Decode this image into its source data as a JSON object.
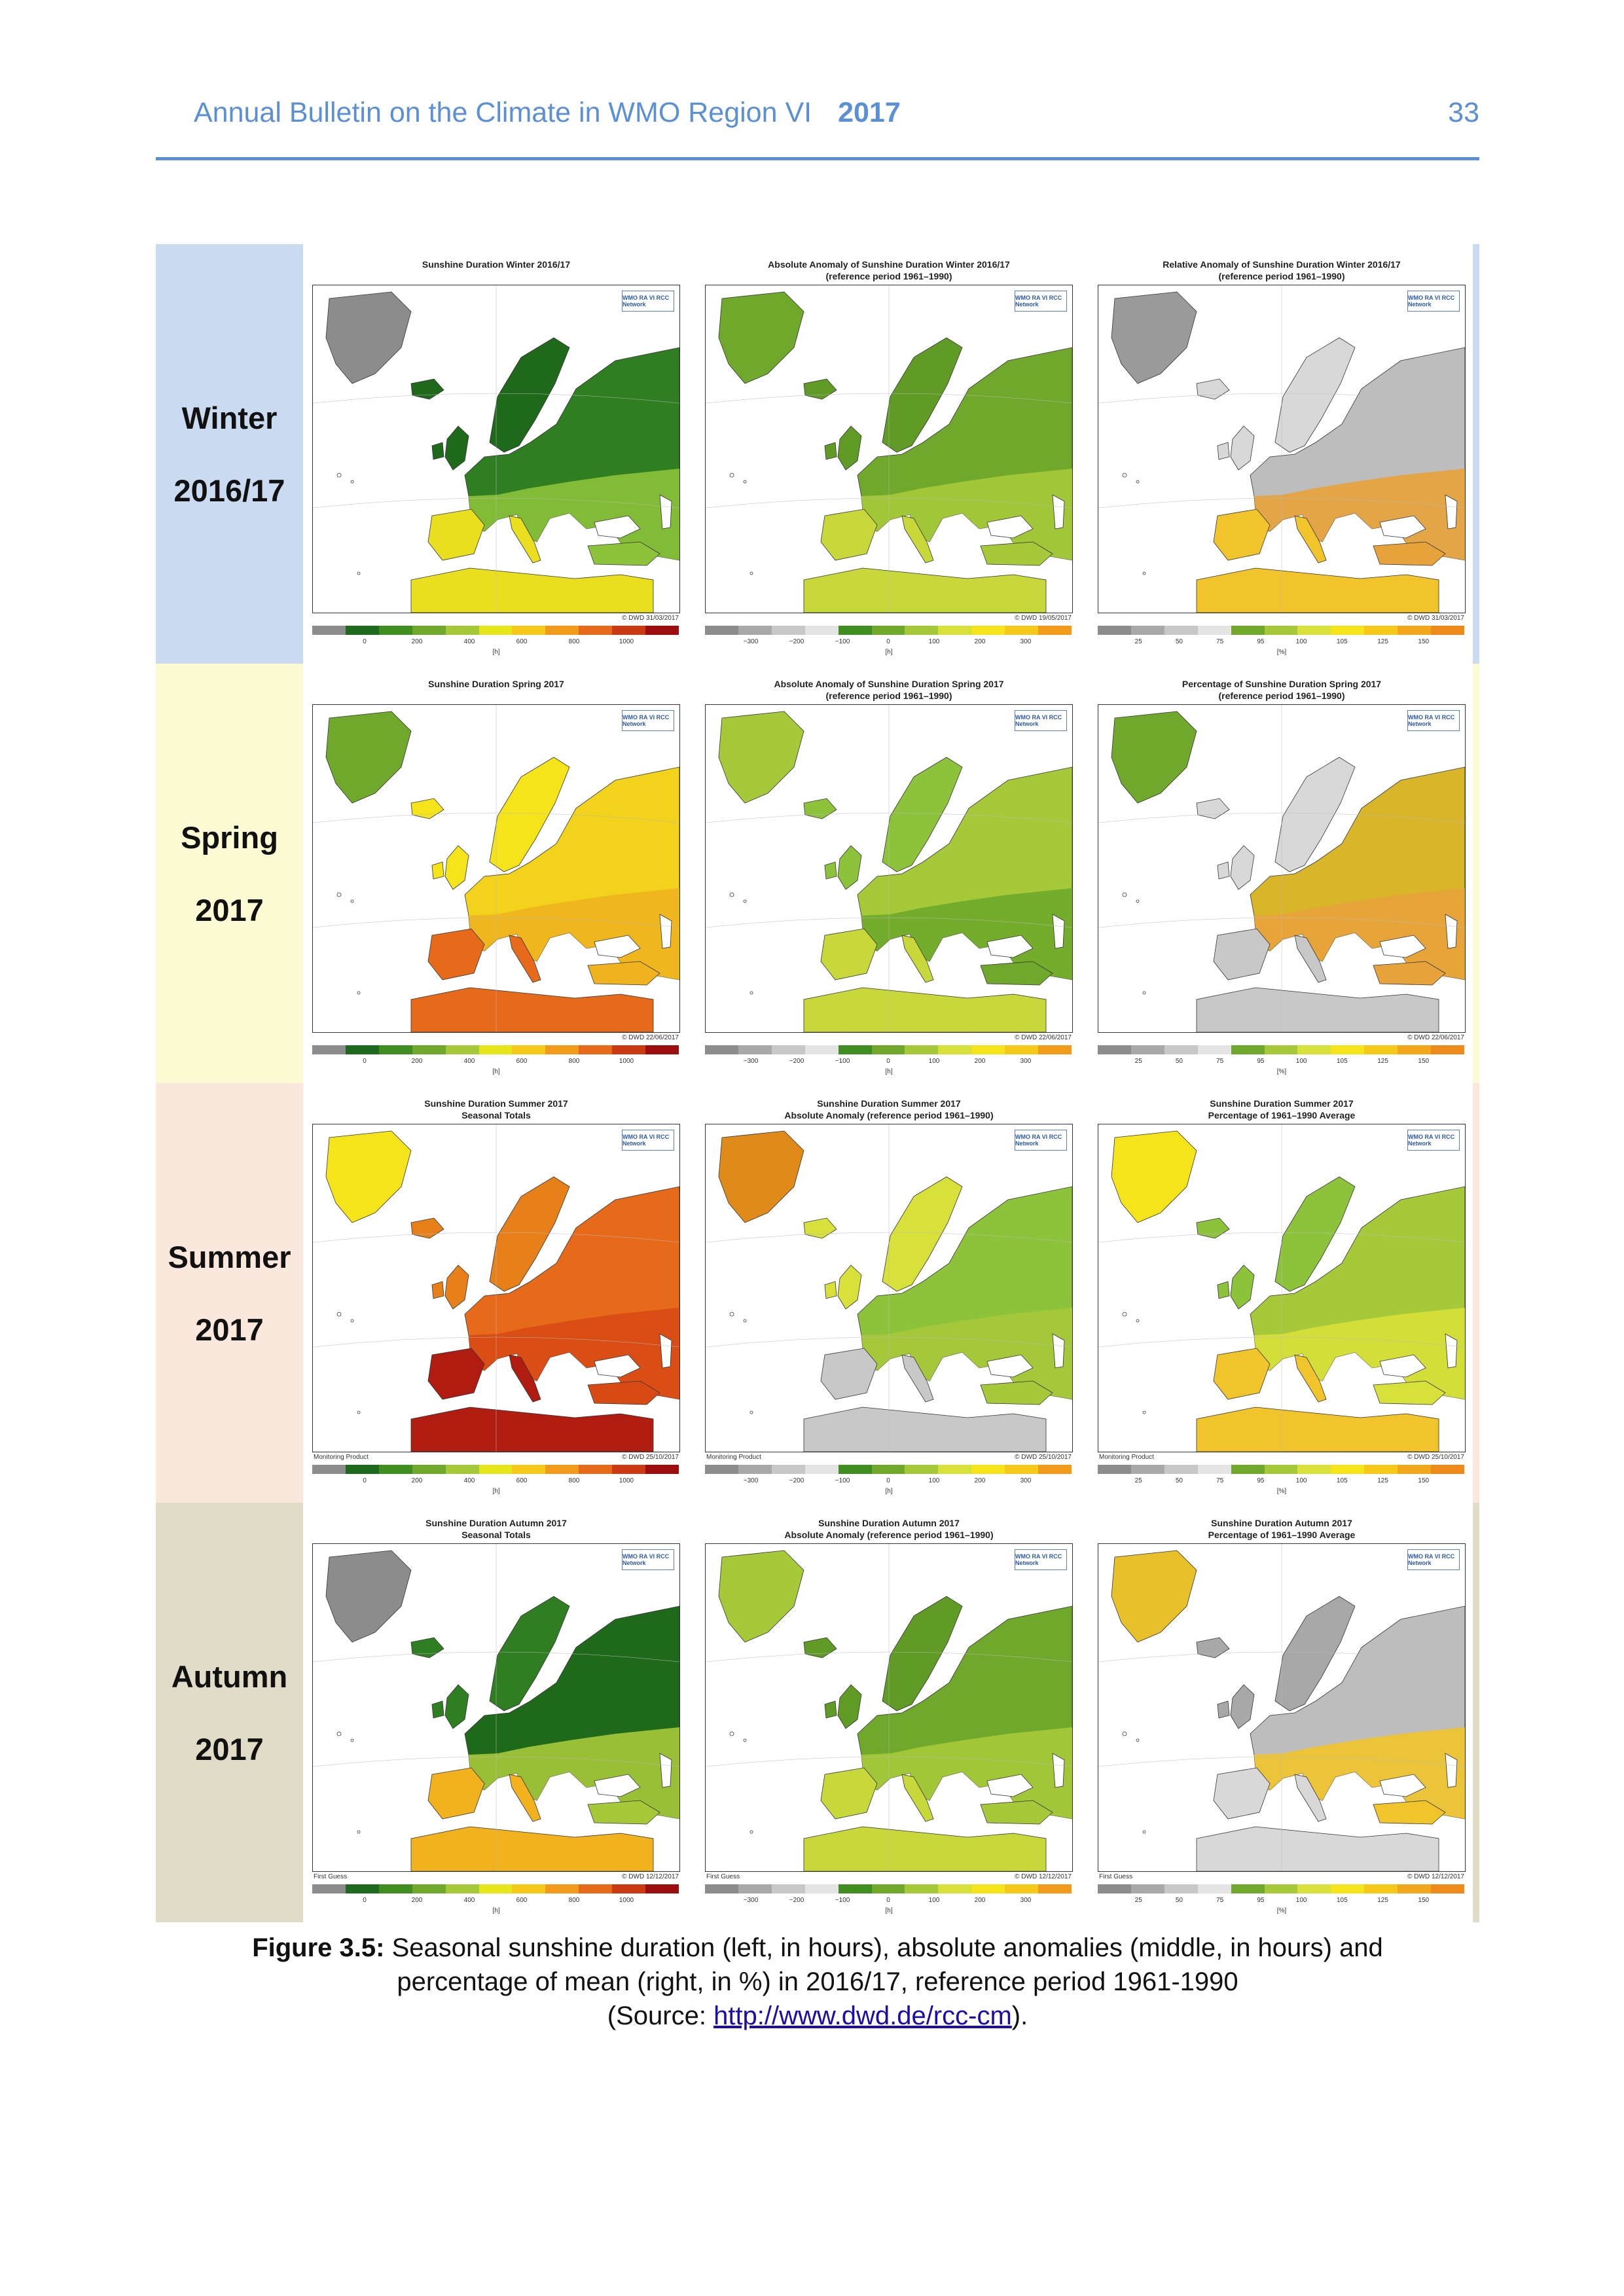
{
  "header": {
    "title": "Annual Bulletin on the Climate in WMO Region VI",
    "year": "2017",
    "page": "33"
  },
  "colors": {
    "header": "#5b8fd6",
    "winter": "#c9daf1",
    "spring": "#fdfbd3",
    "summer": "#fbe8dc",
    "autumn": "#e0dcc8",
    "duration_scale": [
      "#8c8c8c",
      "#1e6a1e",
      "#3f8e1f",
      "#6fa82a",
      "#a6c93a",
      "#e6e61a",
      "#f5c81a",
      "#f29a1a",
      "#e66a1a",
      "#cc3a14",
      "#9c0d0d"
    ],
    "anomaly_scale": [
      "#8c8c8c",
      "#a8a8a8",
      "#c8c8c8",
      "#e4e4e4",
      "#3f8e1f",
      "#6fa82a",
      "#a6c93a",
      "#d8e03a",
      "#f5e41a",
      "#f5c81a",
      "#f29a1a"
    ],
    "percent_scale": [
      "#8c8c8c",
      "#a8a8a8",
      "#c8c8c8",
      "#e4e4e4",
      "#6fa82a",
      "#a6c93a",
      "#d8e03a",
      "#f5e41a",
      "#f5c81a",
      "#f2a81a",
      "#ee8a1a"
    ]
  },
  "scales": {
    "duration": {
      "ticks": [
        "0",
        "200",
        "400",
        "600",
        "800",
        "1000"
      ],
      "unit": "[h]"
    },
    "anomaly": {
      "ticks": [
        "−300",
        "−200",
        "−100",
        "0",
        "100",
        "200",
        "300"
      ],
      "unit": "[h]"
    },
    "percent": {
      "ticks": [
        "25",
        "50",
        "75",
        "95",
        "100",
        "105",
        "125",
        "150"
      ],
      "unit": "[%]"
    }
  },
  "wmo_label": "WMO RA VI RCC Network",
  "seasons": [
    {
      "label_line1": "Winter",
      "label_line2": "2016/17",
      "titles": [
        "Sunshine Duration Winter 2016/17",
        "Absolute Anomaly of Sunshine Duration Winter 2016/17\n(reference period 1961–1990)",
        "Relative Anomaly of Sunshine Duration Winter 2016/17\n(reference period 1961–1990)"
      ],
      "products": [
        "",
        "",
        ""
      ],
      "credits": [
        "© DWD 31/03/2017",
        "© DWD 19/05/2017",
        "© DWD 31/03/2017"
      ]
    },
    {
      "label_line1": "Spring",
      "label_line2": "2017",
      "titles": [
        "Sunshine Duration Spring 2017",
        "Absolute Anomaly of Sunshine Duration Spring 2017\n(reference period 1961–1990)",
        "Percentage of Sunshine Duration Spring 2017\n(reference period 1961–1990)"
      ],
      "products": [
        "",
        "",
        ""
      ],
      "credits": [
        "© DWD 22/06/2017",
        "© DWD 22/06/2017",
        "© DWD 22/06/2017"
      ]
    },
    {
      "label_line1": "Summer",
      "label_line2": "2017",
      "titles": [
        "Sunshine Duration Summer 2017\nSeasonal Totals",
        "Sunshine Duration Summer 2017\nAbsolute Anomaly (reference period 1961–1990)",
        "Sunshine Duration Summer 2017\nPercentage of 1961–1990 Average"
      ],
      "products": [
        "Monitoring Product",
        "Monitoring Product",
        "Monitoring Product"
      ],
      "credits": [
        "© DWD 25/10/2017",
        "© DWD 25/10/2017",
        "© DWD 25/10/2017"
      ]
    },
    {
      "label_line1": "Autumn",
      "label_line2": "2017",
      "titles": [
        "Sunshine Duration Autumn 2017\nSeasonal Totals",
        "Sunshine Duration Autumn 2017\nAbsolute Anomaly (reference period 1961–1990)",
        "Sunshine Duration Autumn 2017\nPercentage of 1961–1990 Average"
      ],
      "products": [
        "First Guess",
        "First Guess",
        "First Guess"
      ],
      "credits": [
        "© DWD 12/12/2017",
        "© DWD 12/12/2017",
        "© DWD 12/12/2017"
      ]
    }
  ],
  "caption": {
    "label": "Figure 3.5:",
    "line1": " Seasonal sunshine duration (left, in hours), absolute anomalies (middle, in hours) and",
    "line2": "percentage of mean (right, in %) in 2016/17, reference period 1961-1990",
    "source_prefix": "(Source: ",
    "source_link": "http://www.dwd.de/rcc-cm",
    "source_suffix": ")."
  }
}
